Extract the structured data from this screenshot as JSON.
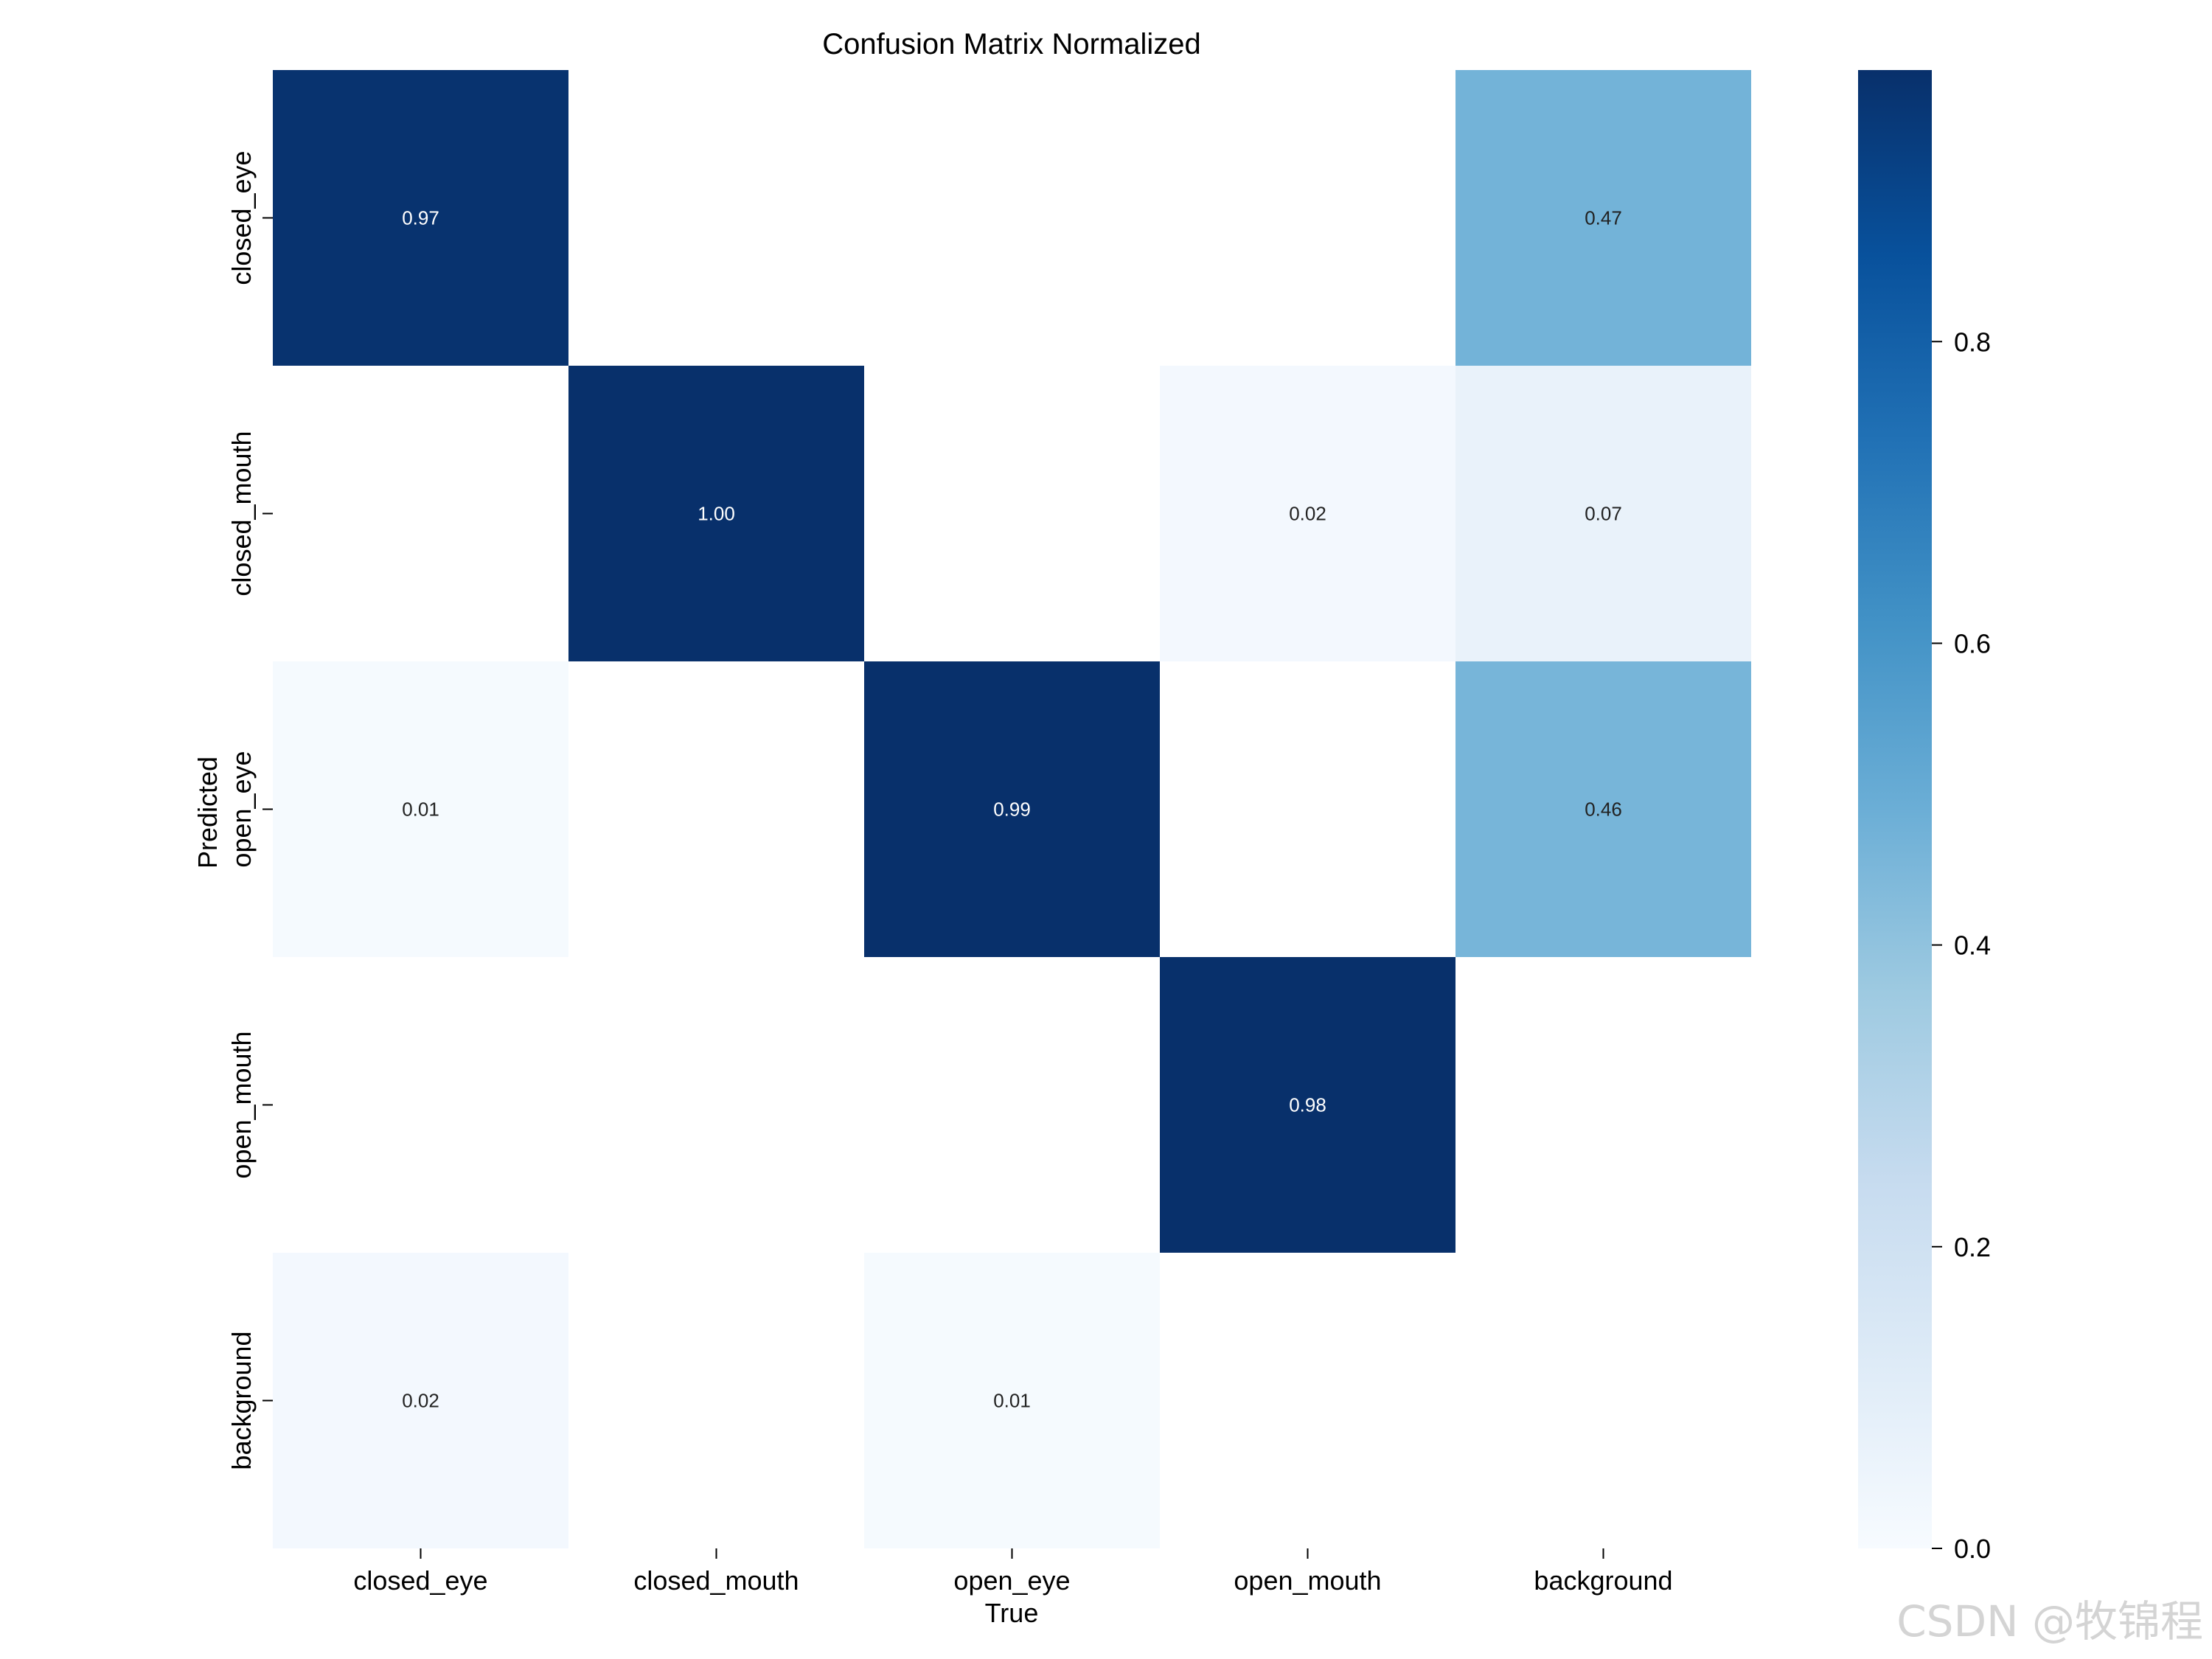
{
  "chart_data": {
    "type": "heatmap",
    "title": "Confusion Matrix Normalized",
    "xlabel": "True",
    "ylabel": "Predicted",
    "x_categories": [
      "closed_eye",
      "closed_mouth",
      "open_eye",
      "open_mouth",
      "background"
    ],
    "y_categories": [
      "closed_eye",
      "closed_mouth",
      "open_eye",
      "open_mouth",
      "background"
    ],
    "matrix": [
      [
        0.97,
        null,
        null,
        null,
        0.47
      ],
      [
        null,
        1.0,
        null,
        0.02,
        0.07
      ],
      [
        0.01,
        null,
        0.99,
        null,
        0.46
      ],
      [
        null,
        null,
        null,
        0.98,
        null
      ],
      [
        0.02,
        null,
        0.01,
        null,
        null
      ]
    ],
    "colorbar": {
      "min": 0.0,
      "max": 0.98,
      "ticks": [
        0.0,
        0.2,
        0.4,
        0.6,
        0.8
      ],
      "tick_labels": [
        "0.0",
        "0.2",
        "0.4",
        "0.6",
        "0.8"
      ]
    },
    "colormap": [
      "#f7fbff",
      "#deebf7",
      "#c6dbef",
      "#9ecae1",
      "#6baed6",
      "#4292c6",
      "#2171b5",
      "#08519c",
      "#08306b"
    ],
    "value_format_decimals": 2
  },
  "watermark": "CSDN @牧锦程"
}
